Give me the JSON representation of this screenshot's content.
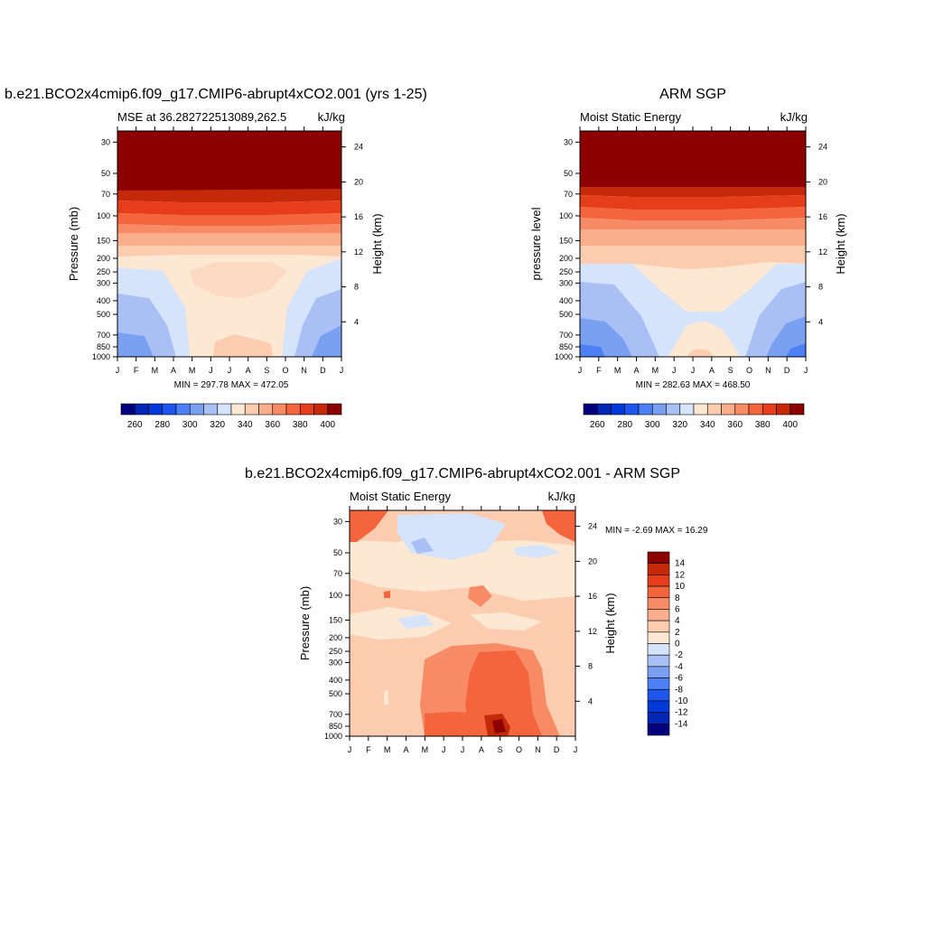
{
  "chart_data": [
    {
      "type": "heatmap",
      "title": "b.e21.BCO2x4cmip6.f09_g17.CMIP6-abrupt4xCO2.001 (yrs 1-25)",
      "subtitle_left": "MSE at 36.282722513089,262.5",
      "subtitle_right": "kJ/kg",
      "ylabel": "Pressure (mb)",
      "ylabel_right": "Height (km)",
      "x_ticks": [
        "J",
        "F",
        "M",
        "A",
        "M",
        "J",
        "J",
        "A",
        "S",
        "O",
        "N",
        "D",
        "J"
      ],
      "y_ticks": [
        "30",
        "50",
        "70",
        "100",
        "150",
        "200",
        "250",
        "300",
        "400",
        "500",
        "700",
        "850",
        "1000"
      ],
      "height_ticks": [
        "24",
        "20",
        "16",
        "12",
        "8",
        "4"
      ],
      "stats": "MIN = 297.78 MAX = 472.05",
      "colorbar_labels": [
        "260",
        "280",
        "300",
        "320",
        "340",
        "360",
        "380",
        "400"
      ]
    },
    {
      "type": "heatmap",
      "title": "ARM SGP",
      "subtitle_left": "Moist Static Energy",
      "subtitle_right": "kJ/kg",
      "ylabel": "pressure level",
      "ylabel_right": "Height (km)",
      "x_ticks": [
        "J",
        "F",
        "M",
        "A",
        "M",
        "J",
        "J",
        "A",
        "S",
        "O",
        "N",
        "D",
        "J"
      ],
      "y_ticks": [
        "30",
        "50",
        "70",
        "100",
        "150",
        "200",
        "250",
        "300",
        "400",
        "500",
        "700",
        "850",
        "1000"
      ],
      "height_ticks": [
        "24",
        "20",
        "16",
        "12",
        "8",
        "4"
      ],
      "stats": "MIN = 282.63 MAX = 468.50",
      "colorbar_labels": [
        "260",
        "280",
        "300",
        "320",
        "340",
        "360",
        "380",
        "400"
      ]
    },
    {
      "type": "heatmap",
      "title": "b.e21.BCO2x4cmip6.f09_g17.CMIP6-abrupt4xCO2.001 - ARM SGP",
      "subtitle_left": "Moist Static Energy",
      "subtitle_right": "kJ/kg",
      "ylabel": "Pressure (mb)",
      "ylabel_right": "Height (km)",
      "x_ticks": [
        "J",
        "F",
        "M",
        "A",
        "M",
        "J",
        "J",
        "A",
        "S",
        "O",
        "N",
        "D",
        "J"
      ],
      "y_ticks": [
        "30",
        "50",
        "70",
        "100",
        "150",
        "200",
        "250",
        "300",
        "400",
        "500",
        "700",
        "850",
        "1000"
      ],
      "height_ticks": [
        "24",
        "20",
        "16",
        "12",
        "8",
        "4"
      ],
      "stats": "MIN =  -2.69 MAX =  16.29",
      "colorbar_labels": [
        "14",
        "12",
        "10",
        "8",
        "6",
        "4",
        "2",
        "0",
        "-2",
        "-4",
        "-6",
        "-8",
        "-10",
        "-12",
        "-14"
      ]
    }
  ],
  "colors": {
    "abs_scale": [
      "#00007f",
      "#0026b3",
      "#0039d9",
      "#1f55ef",
      "#4d80f5",
      "#7aa0f2",
      "#aac0f4",
      "#d6e4fb",
      "#fde8d4",
      "#fcccb0",
      "#fbae8c",
      "#f78b66",
      "#f4643d",
      "#e63e1a",
      "#c42a0a",
      "#8c0000"
    ],
    "diff_scale": [
      "#00007f",
      "#0026b3",
      "#0039d9",
      "#1f55ef",
      "#4d80f5",
      "#7aa0f2",
      "#aac0f4",
      "#d6e4fb",
      "#fde8d4",
      "#fcccb0",
      "#fbae8c",
      "#f78b66",
      "#f4643d",
      "#e63e1a",
      "#c42a0a",
      "#8c0000"
    ]
  }
}
